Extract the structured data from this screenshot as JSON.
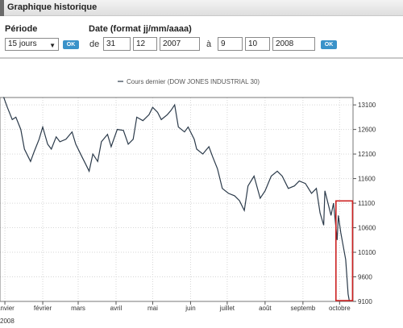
{
  "header": {
    "title": "Graphique historique"
  },
  "form": {
    "period_label": "Période",
    "period_value": "15 jours",
    "date_label": "Date (format jj/mm/aaaa)",
    "from_label": "de",
    "from_day": "31",
    "from_month": "12",
    "from_year": "2007",
    "to_label": "à",
    "to_day": "9",
    "to_month": "10",
    "to_year": "2008",
    "ok_label": "OK"
  },
  "chart_data": {
    "type": "line",
    "series": [
      {
        "name": "Cours dernier (DOW JONES INDUSTRIAL 30)",
        "color": "#2b3a4a",
        "points": [
          [
            "2007-12-31",
            13260
          ],
          [
            "2008-01-03",
            13050
          ],
          [
            "2008-01-07",
            12800
          ],
          [
            "2008-01-10",
            12850
          ],
          [
            "2008-01-14",
            12600
          ],
          [
            "2008-01-17",
            12200
          ],
          [
            "2008-01-22",
            11950
          ],
          [
            "2008-01-25",
            12150
          ],
          [
            "2008-01-29",
            12400
          ],
          [
            "2008-02-01",
            12650
          ],
          [
            "2008-02-05",
            12300
          ],
          [
            "2008-02-08",
            12200
          ],
          [
            "2008-02-12",
            12450
          ],
          [
            "2008-02-15",
            12350
          ],
          [
            "2008-02-20",
            12400
          ],
          [
            "2008-02-25",
            12550
          ],
          [
            "2008-02-28",
            12300
          ],
          [
            "2008-03-04",
            12050
          ],
          [
            "2008-03-07",
            11900
          ],
          [
            "2008-03-10",
            11750
          ],
          [
            "2008-03-13",
            12100
          ],
          [
            "2008-03-17",
            11950
          ],
          [
            "2008-03-20",
            12350
          ],
          [
            "2008-03-25",
            12500
          ],
          [
            "2008-03-28",
            12250
          ],
          [
            "2008-04-02",
            12600
          ],
          [
            "2008-04-07",
            12580
          ],
          [
            "2008-04-11",
            12300
          ],
          [
            "2008-04-15",
            12400
          ],
          [
            "2008-04-18",
            12850
          ],
          [
            "2008-04-23",
            12780
          ],
          [
            "2008-04-28",
            12900
          ],
          [
            "2008-05-01",
            13050
          ],
          [
            "2008-05-05",
            12950
          ],
          [
            "2008-05-08",
            12800
          ],
          [
            "2008-05-13",
            12900
          ],
          [
            "2008-05-16",
            12990
          ],
          [
            "2008-05-19",
            13100
          ],
          [
            "2008-05-22",
            12650
          ],
          [
            "2008-05-27",
            12550
          ],
          [
            "2008-05-30",
            12650
          ],
          [
            "2008-06-04",
            12400
          ],
          [
            "2008-06-06",
            12200
          ],
          [
            "2008-06-11",
            12100
          ],
          [
            "2008-06-16",
            12250
          ],
          [
            "2008-06-19",
            12050
          ],
          [
            "2008-06-23",
            11800
          ],
          [
            "2008-06-27",
            11400
          ],
          [
            "2008-07-02",
            11300
          ],
          [
            "2008-07-07",
            11250
          ],
          [
            "2008-07-11",
            11150
          ],
          [
            "2008-07-15",
            10950
          ],
          [
            "2008-07-18",
            11450
          ],
          [
            "2008-07-23",
            11650
          ],
          [
            "2008-07-28",
            11200
          ],
          [
            "2008-08-01",
            11350
          ],
          [
            "2008-08-06",
            11650
          ],
          [
            "2008-08-11",
            11750
          ],
          [
            "2008-08-15",
            11650
          ],
          [
            "2008-08-20",
            11400
          ],
          [
            "2008-08-25",
            11450
          ],
          [
            "2008-08-29",
            11550
          ],
          [
            "2008-09-03",
            11500
          ],
          [
            "2008-09-08",
            11300
          ],
          [
            "2008-09-12",
            11400
          ],
          [
            "2008-09-15",
            10900
          ],
          [
            "2008-09-18",
            10650
          ],
          [
            "2008-09-19",
            11350
          ],
          [
            "2008-09-24",
            10850
          ],
          [
            "2008-09-26",
            11100
          ],
          [
            "2008-09-29",
            10350
          ],
          [
            "2008-09-30",
            10850
          ],
          [
            "2008-10-02",
            10500
          ],
          [
            "2008-10-06",
            9950
          ],
          [
            "2008-10-08",
            9250
          ],
          [
            "2008-10-09",
            8600
          ]
        ]
      }
    ],
    "x_labels": [
      {
        "date": "2008-01-01",
        "label": "janvier"
      },
      {
        "date": "2008-02-01",
        "label": "février"
      },
      {
        "date": "2008-03-01",
        "label": "mars"
      },
      {
        "date": "2008-04-01",
        "label": "avril"
      },
      {
        "date": "2008-05-01",
        "label": "mai"
      },
      {
        "date": "2008-06-01",
        "label": "juin"
      },
      {
        "date": "2008-07-01",
        "label": "juillet"
      },
      {
        "date": "2008-08-01",
        "label": "août"
      },
      {
        "date": "2008-09-01",
        "label": "septemb"
      },
      {
        "date": "2008-10-01",
        "label": "octobre"
      }
    ],
    "x_year_label": "2008",
    "xlim": [
      "2007-12-28",
      "2008-10-12"
    ],
    "yticks": [
      13100,
      12600,
      12100,
      11600,
      11100,
      10600,
      10100,
      9600,
      9100
    ],
    "ylim": [
      9100,
      13250
    ],
    "grid": true,
    "legend": "top-center",
    "highlight": {
      "from": "2008-09-30",
      "to": "2008-10-09",
      "color": "#cc2222"
    }
  }
}
